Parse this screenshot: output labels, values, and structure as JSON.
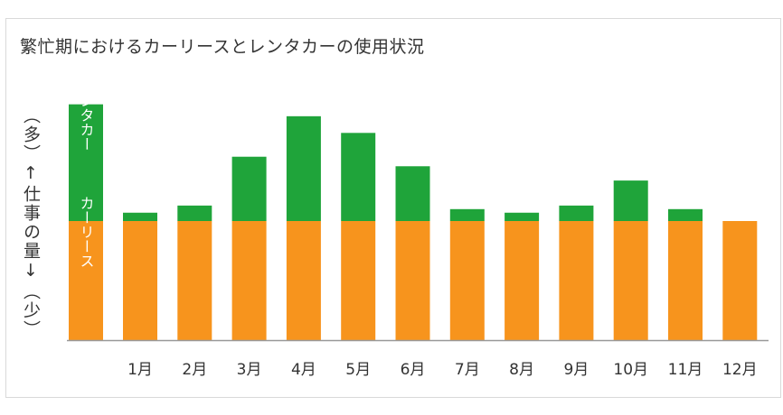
{
  "chart_data": {
    "type": "bar",
    "stacked": true,
    "title": "繁忙期におけるカーリースとレンタカーの使用状況",
    "ylabel": "（多）↑仕事の量↓（少）",
    "legend_bar": {
      "series": [
        "レンタカー",
        "カーリース"
      ]
    },
    "categories": [
      "1月",
      "2月",
      "3月",
      "4月",
      "5月",
      "6月",
      "7月",
      "8月",
      "9月",
      "10月",
      "11月",
      "12月"
    ],
    "series": [
      {
        "name": "カーリース",
        "values": [
          1,
          1,
          1,
          1,
          1,
          1,
          1,
          1,
          1,
          1,
          1,
          1
        ]
      },
      {
        "name": "レンタカー",
        "values": [
          0.07,
          0.13,
          0.54,
          0.88,
          0.74,
          0.46,
          0.1,
          0.07,
          0.13,
          0.34,
          0.1,
          0
        ]
      }
    ],
    "legend_values": {
      "カーリース": 1,
      "レンタカー": 0.98
    },
    "ylim": [
      0,
      2
    ],
    "colors": {
      "カーリース": "#F7941D",
      "レンタカー": "#1FA43A",
      "axis": "#999999"
    }
  }
}
